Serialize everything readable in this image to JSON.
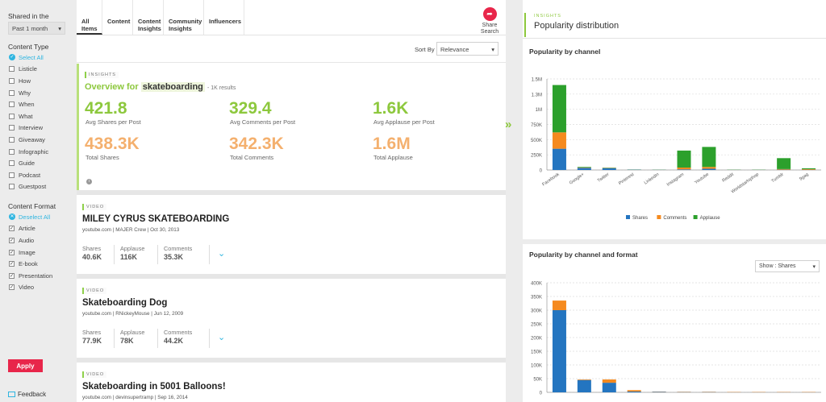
{
  "sidebar": {
    "shared_in_label": "Shared in the",
    "shared_in_value": "Past 1 month",
    "content_type_label": "Content Type",
    "select_all": "Select All",
    "types": [
      "Listicle",
      "How",
      "Why",
      "When",
      "What",
      "Interview",
      "Giveaway",
      "Infographic",
      "Guide",
      "Podcast",
      "Guestpost"
    ],
    "content_format_label": "Content Format",
    "deselect_all": "Deselect All",
    "formats": [
      "Article",
      "Audio",
      "Image",
      "E-book",
      "Presentation",
      "Video"
    ],
    "apply": "Apply",
    "feedback": "Feedback"
  },
  "tabs": [
    {
      "label": "All Items",
      "active": true
    },
    {
      "label": "Content",
      "active": false
    },
    {
      "label": "Content Insights",
      "active": false
    },
    {
      "label": "Community Insights",
      "active": false
    },
    {
      "label": "Influencers",
      "active": false
    }
  ],
  "share_search": "Share Search",
  "sort": {
    "label": "Sort By",
    "value": "Relevance"
  },
  "insights": {
    "tag": "INSIGHTS",
    "overview_prefix": "Overview for",
    "query": "skateboarding",
    "results": "- 1K results",
    "stats": [
      {
        "value": "421.8",
        "label": "Avg Shares per Post"
      },
      {
        "value": "329.4",
        "label": "Avg Comments per Post"
      },
      {
        "value": "1.6K",
        "label": "Avg Applause per Post"
      },
      {
        "value": "438.3K",
        "label": "Total Shares"
      },
      {
        "value": "342.3K",
        "label": "Total Comments"
      },
      {
        "value": "1.6M",
        "label": "Total Applause"
      }
    ]
  },
  "cards": [
    {
      "tag": "VIDEO",
      "title": "MILEY CYRUS SKATEBOARDING",
      "source": "youtube.com",
      "author": "MAJER Crew",
      "date": "Oct 30, 2013",
      "shares_label": "Shares",
      "shares": "40.6K",
      "applause_label": "Applause",
      "applause": "116K",
      "comments_label": "Comments",
      "comments": "35.3K"
    },
    {
      "tag": "VIDEO",
      "title": "Skateboarding Dog",
      "source": "youtube.com",
      "author": "RNickeyMouse",
      "date": "Jun 12, 2009",
      "shares_label": "Shares",
      "shares": "77.9K",
      "applause_label": "Applause",
      "applause": "78K",
      "comments_label": "Comments",
      "comments": "44.2K"
    },
    {
      "tag": "VIDEO",
      "title": "Skateboarding in 5001 Balloons!",
      "source": "youtube.com",
      "author": "devinsupertramp",
      "date": "Sep 16, 2014"
    }
  ],
  "right": {
    "tag": "INSIGHTS",
    "title": "Popularity distribution",
    "chart1_title": "Popularity by channel",
    "chart2_title": "Popularity by channel and format",
    "show_select": "Show : Shares"
  },
  "colors": {
    "shares": "#2475c0",
    "comments": "#f58a1f",
    "applause": "#2ca02c",
    "accent": "#e8264a",
    "green": "#8dc83d"
  },
  "chart_data": [
    {
      "type": "bar",
      "stacked": true,
      "title": "Popularity by channel",
      "categories": [
        "Facebook",
        "Google+",
        "Twitter",
        "Pinterest",
        "LinkedIn",
        "Instagram",
        "Youtube",
        "Reddit",
        "Worldstarhiphop",
        "Tumblr",
        "9gag"
      ],
      "ylim": [
        0,
        1500000
      ],
      "yticks": [
        "0",
        "250K",
        "500K",
        "750K",
        "1M",
        "1.3M",
        "1.5M"
      ],
      "series": [
        {
          "name": "Shares",
          "values": [
            350000,
            35000,
            30000,
            5000,
            3000,
            10000,
            20000,
            2000,
            2000,
            5000,
            3000
          ]
        },
        {
          "name": "Comments",
          "values": [
            270000,
            5000,
            5000,
            1000,
            1000,
            30000,
            30000,
            1000,
            1000,
            10000,
            10000
          ]
        },
        {
          "name": "Applause",
          "values": [
            780000,
            10000,
            5000,
            2000,
            2000,
            280000,
            330000,
            3000,
            3000,
            180000,
            15000
          ]
        }
      ],
      "legend": [
        "Shares",
        "Comments",
        "Applause"
      ]
    },
    {
      "type": "bar",
      "stacked": true,
      "title": "Popularity by channel and format",
      "ylim": [
        0,
        400000
      ],
      "yticks": [
        "0",
        "50K",
        "100K",
        "150K",
        "200K",
        "250K",
        "300K",
        "350K",
        "400K"
      ],
      "series": [
        {
          "name": "Shares",
          "values": [
            300000,
            45000,
            35000,
            3000,
            2000,
            1000,
            1000,
            500,
            500,
            500,
            500
          ]
        },
        {
          "name": "Comments",
          "values": [
            35000,
            2000,
            12000,
            5000,
            1000,
            1000,
            1000,
            1000,
            1000,
            1000,
            1000
          ]
        }
      ]
    }
  ]
}
